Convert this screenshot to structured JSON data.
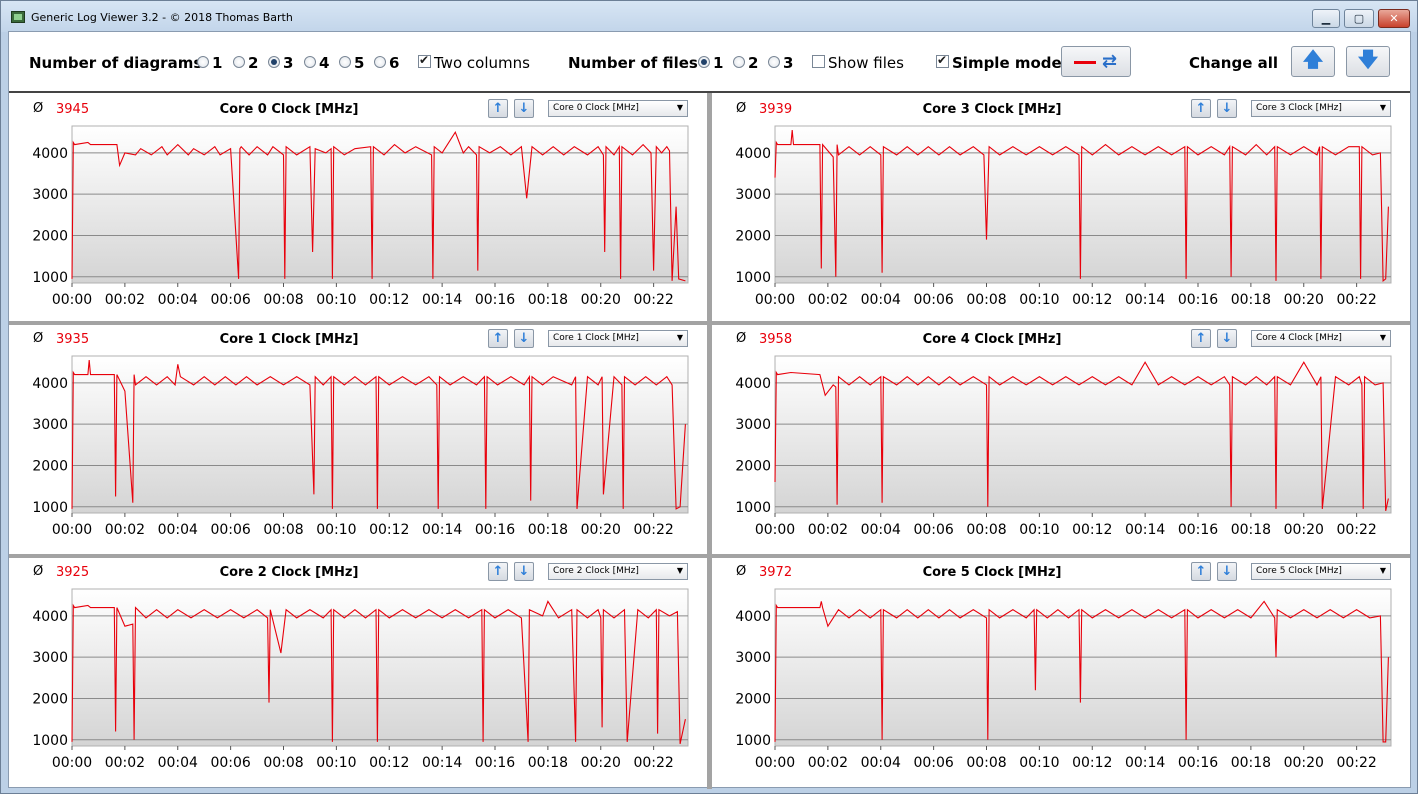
{
  "window": {
    "title": "Generic Log Viewer 3.2 - © 2018 Thomas Barth",
    "minimize_label": "▁",
    "maximize_label": "▢",
    "close_label": "✕"
  },
  "toolbar": {
    "diagrams_label": "Number of diagrams",
    "diagram_options": [
      "1",
      "2",
      "3",
      "4",
      "5",
      "6"
    ],
    "diagrams_selected": "3",
    "two_columns_label": "Two columns",
    "two_columns_checked": true,
    "files_label": "Number of files",
    "file_options": [
      "1",
      "2",
      "3"
    ],
    "files_selected": "1",
    "show_files_label": "Show files",
    "show_files_checked": false,
    "simple_mode_label": "Simple mode",
    "simple_mode_checked": true,
    "change_all_label": "Change all",
    "line_color": "#e8000b"
  },
  "panels": [
    {
      "avg_symbol": "Ø",
      "avg": "3945",
      "title": "Core 0 Clock [MHz]",
      "combo": "Core 0 Clock [MHz]"
    },
    {
      "avg_symbol": "Ø",
      "avg": "3939",
      "title": "Core 3 Clock [MHz]",
      "combo": "Core 3 Clock [MHz]"
    },
    {
      "avg_symbol": "Ø",
      "avg": "3935",
      "title": "Core 1 Clock [MHz]",
      "combo": "Core 1 Clock [MHz]"
    },
    {
      "avg_symbol": "Ø",
      "avg": "3958",
      "title": "Core 4 Clock [MHz]",
      "combo": "Core 4 Clock [MHz]"
    },
    {
      "avg_symbol": "Ø",
      "avg": "3925",
      "title": "Core 2 Clock [MHz]",
      "combo": "Core 2 Clock [MHz]"
    },
    {
      "avg_symbol": "Ø",
      "avg": "3972",
      "title": "Core 5 Clock [MHz]",
      "combo": "Core 5 Clock [MHz]"
    }
  ],
  "chart_data": [
    {
      "type": "line",
      "title": "Core 0 Clock [MHz]",
      "ylim": [
        850,
        4650
      ],
      "yticks": [
        1000,
        2000,
        3000,
        4000
      ],
      "xlim": [
        0,
        23.3
      ],
      "xticks": [
        "00:00",
        "00:02",
        "00:04",
        "00:06",
        "00:08",
        "00:10",
        "00:12",
        "00:14",
        "00:16",
        "00:18",
        "00:20",
        "00:22"
      ],
      "grid": true,
      "color": "#e8000b",
      "x": [
        0,
        0.05,
        0.1,
        0.6,
        0.7,
        1.7,
        1.8,
        2,
        2.4,
        2.6,
        3,
        3.4,
        3.6,
        4,
        4.4,
        4.6,
        5,
        5.4,
        5.6,
        6,
        6.3,
        6.35,
        6.4,
        6.7,
        7,
        7.4,
        7.6,
        8,
        8.05,
        8.1,
        8.5,
        9,
        9.1,
        9.2,
        9.6,
        9.8,
        9.85,
        9.9,
        10.3,
        10.7,
        11.3,
        11.35,
        11.4,
        11.8,
        12.2,
        12.6,
        13,
        13.6,
        13.65,
        13.7,
        14,
        14.5,
        14.8,
        15,
        15.3,
        15.35,
        15.4,
        15.8,
        16.2,
        16.6,
        17,
        17.2,
        17.4,
        17.8,
        18.2,
        18.6,
        19,
        19.5,
        19.9,
        20.1,
        20.15,
        20.2,
        20.5,
        20.7,
        20.75,
        20.8,
        21.2,
        21.6,
        21.9,
        22,
        22.1,
        22.3,
        22.5,
        22.6,
        22.7,
        22.85,
        22.95,
        23.2
      ],
      "y": [
        950,
        4250,
        4200,
        4250,
        4200,
        4200,
        3700,
        4000,
        3950,
        4100,
        3950,
        4150,
        3950,
        4200,
        3950,
        4100,
        3950,
        4150,
        3950,
        4100,
        950,
        4100,
        4150,
        3950,
        4150,
        3950,
        4150,
        3950,
        950,
        4150,
        3950,
        4150,
        1600,
        4100,
        4000,
        4100,
        950,
        4150,
        3950,
        4100,
        4150,
        950,
        4150,
        3950,
        4200,
        4000,
        4150,
        3950,
        950,
        4150,
        4000,
        4500,
        4000,
        4150,
        3950,
        1150,
        4150,
        4000,
        4150,
        3950,
        4150,
        2900,
        4150,
        3950,
        4150,
        3950,
        4150,
        3950,
        4150,
        3950,
        1600,
        4150,
        3950,
        4150,
        950,
        4150,
        3950,
        4200,
        4000,
        1150,
        4150,
        4000,
        4150,
        4050,
        900,
        2700,
        950,
        900
      ]
    },
    {
      "type": "line",
      "title": "Core 3 Clock [MHz]",
      "ylim": [
        850,
        4650
      ],
      "yticks": [
        1000,
        2000,
        3000,
        4000
      ],
      "xlim": [
        0,
        23.3
      ],
      "xticks": [
        "00:00",
        "00:02",
        "00:04",
        "00:06",
        "00:08",
        "00:10",
        "00:12",
        "00:14",
        "00:16",
        "00:18",
        "00:20",
        "00:22"
      ],
      "grid": true,
      "color": "#e8000b",
      "x": [
        0,
        0.05,
        0.1,
        0.6,
        0.65,
        0.7,
        1.7,
        1.75,
        1.8,
        2.2,
        2.3,
        2.35,
        2.4,
        2.8,
        3.2,
        3.6,
        4,
        4.05,
        4.1,
        4.6,
        5,
        5.4,
        5.8,
        6.2,
        6.6,
        7,
        7.5,
        7.9,
        8,
        8.1,
        8.5,
        9,
        9.5,
        10,
        10.5,
        11,
        11.5,
        11.55,
        11.6,
        12,
        12.5,
        13,
        13.5,
        14,
        14.5,
        15,
        15.5,
        15.55,
        15.6,
        16,
        16.5,
        17,
        17.2,
        17.25,
        17.3,
        17.8,
        18.2,
        18.6,
        18.9,
        18.95,
        19,
        19.5,
        20,
        20.5,
        20.6,
        20.65,
        20.7,
        21.2,
        21.7,
        22.1,
        22.15,
        22.2,
        22.6,
        22.9,
        23,
        23.1,
        23.2
      ],
      "y": [
        3400,
        4250,
        4200,
        4200,
        4550,
        4200,
        4200,
        1200,
        4200,
        3900,
        1000,
        4200,
        3950,
        4150,
        3950,
        4150,
        3950,
        1100,
        4150,
        3950,
        4150,
        3950,
        4150,
        3950,
        4150,
        3950,
        4150,
        3950,
        1900,
        4150,
        3950,
        4150,
        3950,
        4150,
        3950,
        4150,
        3950,
        950,
        4150,
        3950,
        4200,
        3950,
        4150,
        3950,
        4150,
        3950,
        4150,
        950,
        4150,
        3950,
        4150,
        3950,
        4150,
        1000,
        4150,
        3950,
        4200,
        3950,
        4150,
        900,
        4150,
        3950,
        4150,
        3950,
        4150,
        950,
        4150,
        3950,
        4150,
        4150,
        950,
        4150,
        3950,
        4000,
        900,
        950,
        2700
      ]
    },
    {
      "type": "line",
      "title": "Core 1 Clock [MHz]",
      "ylim": [
        850,
        4650
      ],
      "yticks": [
        1000,
        2000,
        3000,
        4000
      ],
      "xlim": [
        0,
        23.3
      ],
      "xticks": [
        "00:00",
        "00:02",
        "00:04",
        "00:06",
        "00:08",
        "00:10",
        "00:12",
        "00:14",
        "00:16",
        "00:18",
        "00:20",
        "00:22"
      ],
      "grid": true,
      "color": "#e8000b",
      "x": [
        0,
        0.05,
        0.1,
        0.6,
        0.65,
        0.7,
        1.6,
        1.65,
        1.7,
        2,
        2.3,
        2.35,
        2.4,
        2.8,
        3.2,
        3.6,
        3.9,
        4,
        4.1,
        4.6,
        5,
        5.4,
        5.8,
        6.2,
        6.6,
        7,
        7.5,
        8,
        8.5,
        9,
        9.15,
        9.2,
        9.5,
        9.8,
        9.85,
        9.9,
        10.3,
        10.7,
        11.1,
        11.5,
        11.55,
        11.6,
        12,
        12.5,
        13,
        13.5,
        13.8,
        13.85,
        13.9,
        14.3,
        14.8,
        15.3,
        15.6,
        15.65,
        15.7,
        16.1,
        16.6,
        17.1,
        17.3,
        17.35,
        17.4,
        17.8,
        18.2,
        18.9,
        19.05,
        19.1,
        19.5,
        19.9,
        20.05,
        20.1,
        20.5,
        20.8,
        20.85,
        20.9,
        21.3,
        21.7,
        22.1,
        22.5,
        22.7,
        22.85,
        23,
        23.2
      ],
      "y": [
        950,
        4250,
        4200,
        4200,
        4550,
        4200,
        4200,
        1250,
        4200,
        3800,
        1100,
        4200,
        3950,
        4150,
        3950,
        4150,
        3950,
        4450,
        4150,
        3950,
        4150,
        3950,
        4150,
        3950,
        4150,
        3950,
        4150,
        3950,
        4150,
        3950,
        1300,
        4150,
        3950,
        4150,
        950,
        4150,
        3950,
        4150,
        3950,
        4150,
        950,
        4150,
        3950,
        4150,
        3950,
        4150,
        3950,
        950,
        4150,
        3950,
        4150,
        3950,
        4150,
        950,
        4150,
        3950,
        4150,
        3950,
        4150,
        1150,
        4150,
        3950,
        4150,
        3950,
        4150,
        950,
        4150,
        3950,
        4150,
        1300,
        4150,
        3950,
        950,
        4150,
        3950,
        4150,
        3950,
        4150,
        3950,
        950,
        1000,
        3000
      ]
    },
    {
      "type": "line",
      "title": "Core 4 Clock [MHz]",
      "ylim": [
        850,
        4650
      ],
      "yticks": [
        1000,
        2000,
        3000,
        4000
      ],
      "xlim": [
        0,
        23.3
      ],
      "xticks": [
        "00:00",
        "00:02",
        "00:04",
        "00:06",
        "00:08",
        "00:10",
        "00:12",
        "00:14",
        "00:16",
        "00:18",
        "00:20",
        "00:22"
      ],
      "grid": true,
      "color": "#e8000b",
      "x": [
        0,
        0.05,
        0.1,
        0.6,
        1.7,
        1.9,
        2.2,
        2.3,
        2.35,
        2.4,
        2.8,
        3.2,
        3.6,
        4,
        4.05,
        4.1,
        4.6,
        5,
        5.4,
        5.8,
        6.2,
        6.6,
        7,
        7.5,
        8,
        8.05,
        8.1,
        8.5,
        9,
        9.5,
        10,
        10.5,
        11,
        11.5,
        12,
        12.5,
        13,
        13.5,
        14,
        14.5,
        15,
        15.5,
        16,
        16.5,
        17,
        17.2,
        17.25,
        17.3,
        17.8,
        18.2,
        18.6,
        18.9,
        18.95,
        19,
        19.5,
        20,
        20.5,
        20.65,
        20.7,
        21.2,
        21.7,
        22.1,
        22.2,
        22.25,
        22.3,
        22.7,
        23,
        23.1,
        23.2
      ],
      "y": [
        1600,
        4250,
        4200,
        4250,
        4200,
        3700,
        3950,
        3900,
        1050,
        4150,
        3950,
        4150,
        3950,
        4150,
        1100,
        4150,
        3950,
        4150,
        3950,
        4150,
        3950,
        4150,
        3950,
        4150,
        3950,
        1000,
        4150,
        3950,
        4150,
        3950,
        4150,
        3950,
        4150,
        3950,
        4150,
        3950,
        4150,
        3950,
        4500,
        3950,
        4150,
        3950,
        4150,
        3950,
        4150,
        3950,
        1000,
        4150,
        3950,
        4150,
        3950,
        4150,
        950,
        4150,
        3950,
        4500,
        3950,
        4150,
        950,
        4150,
        3950,
        4150,
        3950,
        950,
        4150,
        3950,
        4000,
        900,
        1200
      ]
    },
    {
      "type": "line",
      "title": "Core 2 Clock [MHz]",
      "ylim": [
        850,
        4650
      ],
      "yticks": [
        1000,
        2000,
        3000,
        4000
      ],
      "xlim": [
        0,
        23.3
      ],
      "xticks": [
        "00:00",
        "00:02",
        "00:04",
        "00:06",
        "00:08",
        "00:10",
        "00:12",
        "00:14",
        "00:16",
        "00:18",
        "00:20",
        "00:22"
      ],
      "grid": true,
      "color": "#e8000b",
      "x": [
        0,
        0.05,
        0.1,
        0.6,
        0.7,
        1.6,
        1.65,
        1.7,
        2,
        2.3,
        2.35,
        2.4,
        2.8,
        3.2,
        3.6,
        4,
        4.5,
        5,
        5.5,
        6,
        6.5,
        7,
        7.4,
        7.45,
        7.5,
        7.9,
        8.1,
        8.5,
        9,
        9.5,
        9.8,
        9.85,
        9.9,
        10.3,
        10.7,
        11.1,
        11.5,
        11.55,
        11.6,
        12,
        12.5,
        13,
        13.5,
        14,
        14.5,
        15,
        15.5,
        15.55,
        15.6,
        16,
        16.5,
        17,
        17.25,
        17.3,
        17.8,
        18,
        18.4,
        18.9,
        19.05,
        19.1,
        19.5,
        19.9,
        20,
        20.05,
        20.1,
        20.5,
        20.9,
        21,
        21.4,
        21.8,
        22.1,
        22.15,
        22.2,
        22.6,
        22.9,
        23,
        23.2
      ],
      "y": [
        950,
        4250,
        4200,
        4250,
        4200,
        4200,
        1200,
        4200,
        3750,
        3800,
        1000,
        4200,
        3950,
        4150,
        3950,
        4150,
        3950,
        4150,
        3950,
        4150,
        3950,
        4150,
        3950,
        1900,
        4150,
        3100,
        4150,
        3950,
        4150,
        3950,
        4150,
        950,
        4150,
        3950,
        4150,
        3950,
        4150,
        950,
        4150,
        3950,
        4150,
        3950,
        4150,
        3950,
        4150,
        3950,
        4150,
        950,
        4150,
        3950,
        4150,
        3950,
        950,
        4150,
        4000,
        4350,
        3950,
        4150,
        950,
        4150,
        3950,
        4150,
        3950,
        1300,
        4150,
        3950,
        4150,
        950,
        4150,
        3950,
        4150,
        1150,
        4150,
        4000,
        4100,
        900,
        1500
      ]
    },
    {
      "type": "line",
      "title": "Core 5 Clock [MHz]",
      "ylim": [
        850,
        4650
      ],
      "yticks": [
        1000,
        2000,
        3000,
        4000
      ],
      "xlim": [
        0,
        23.3
      ],
      "xticks": [
        "00:00",
        "00:02",
        "00:04",
        "00:06",
        "00:08",
        "00:10",
        "00:12",
        "00:14",
        "00:16",
        "00:18",
        "00:20",
        "00:22"
      ],
      "grid": true,
      "color": "#e8000b",
      "x": [
        0,
        0.05,
        0.1,
        0.6,
        1.7,
        1.75,
        1.8,
        2,
        2.4,
        2.8,
        3.2,
        3.6,
        4,
        4.05,
        4.1,
        4.6,
        5,
        5.4,
        5.8,
        6.2,
        6.6,
        7,
        7.5,
        8,
        8.05,
        8.1,
        8.5,
        9,
        9.5,
        9.8,
        9.85,
        9.9,
        10.3,
        10.7,
        11.1,
        11.5,
        11.55,
        11.6,
        12,
        12.5,
        13,
        13.5,
        14,
        14.5,
        15,
        15.5,
        15.55,
        15.6,
        16,
        16.5,
        17,
        17.5,
        18,
        18.5,
        18.9,
        18.95,
        19,
        19.5,
        20,
        20.5,
        21,
        21.5,
        22,
        22.5,
        22.9,
        23,
        23.1,
        23.2
      ],
      "y": [
        950,
        4250,
        4200,
        4200,
        4200,
        4350,
        4200,
        3750,
        4150,
        3950,
        4150,
        3950,
        4150,
        1000,
        4150,
        3950,
        4150,
        3950,
        4150,
        3950,
        4150,
        3950,
        4150,
        3950,
        1000,
        4150,
        3950,
        4150,
        3950,
        4150,
        2200,
        4150,
        3950,
        4150,
        3950,
        4150,
        1900,
        4150,
        3950,
        4150,
        3950,
        4150,
        3950,
        4150,
        3950,
        4150,
        1000,
        4150,
        3950,
        4150,
        3950,
        4150,
        3950,
        4350,
        3950,
        3000,
        4150,
        3950,
        4150,
        3950,
        4150,
        3950,
        4150,
        3950,
        4000,
        950,
        950,
        3000
      ]
    }
  ]
}
